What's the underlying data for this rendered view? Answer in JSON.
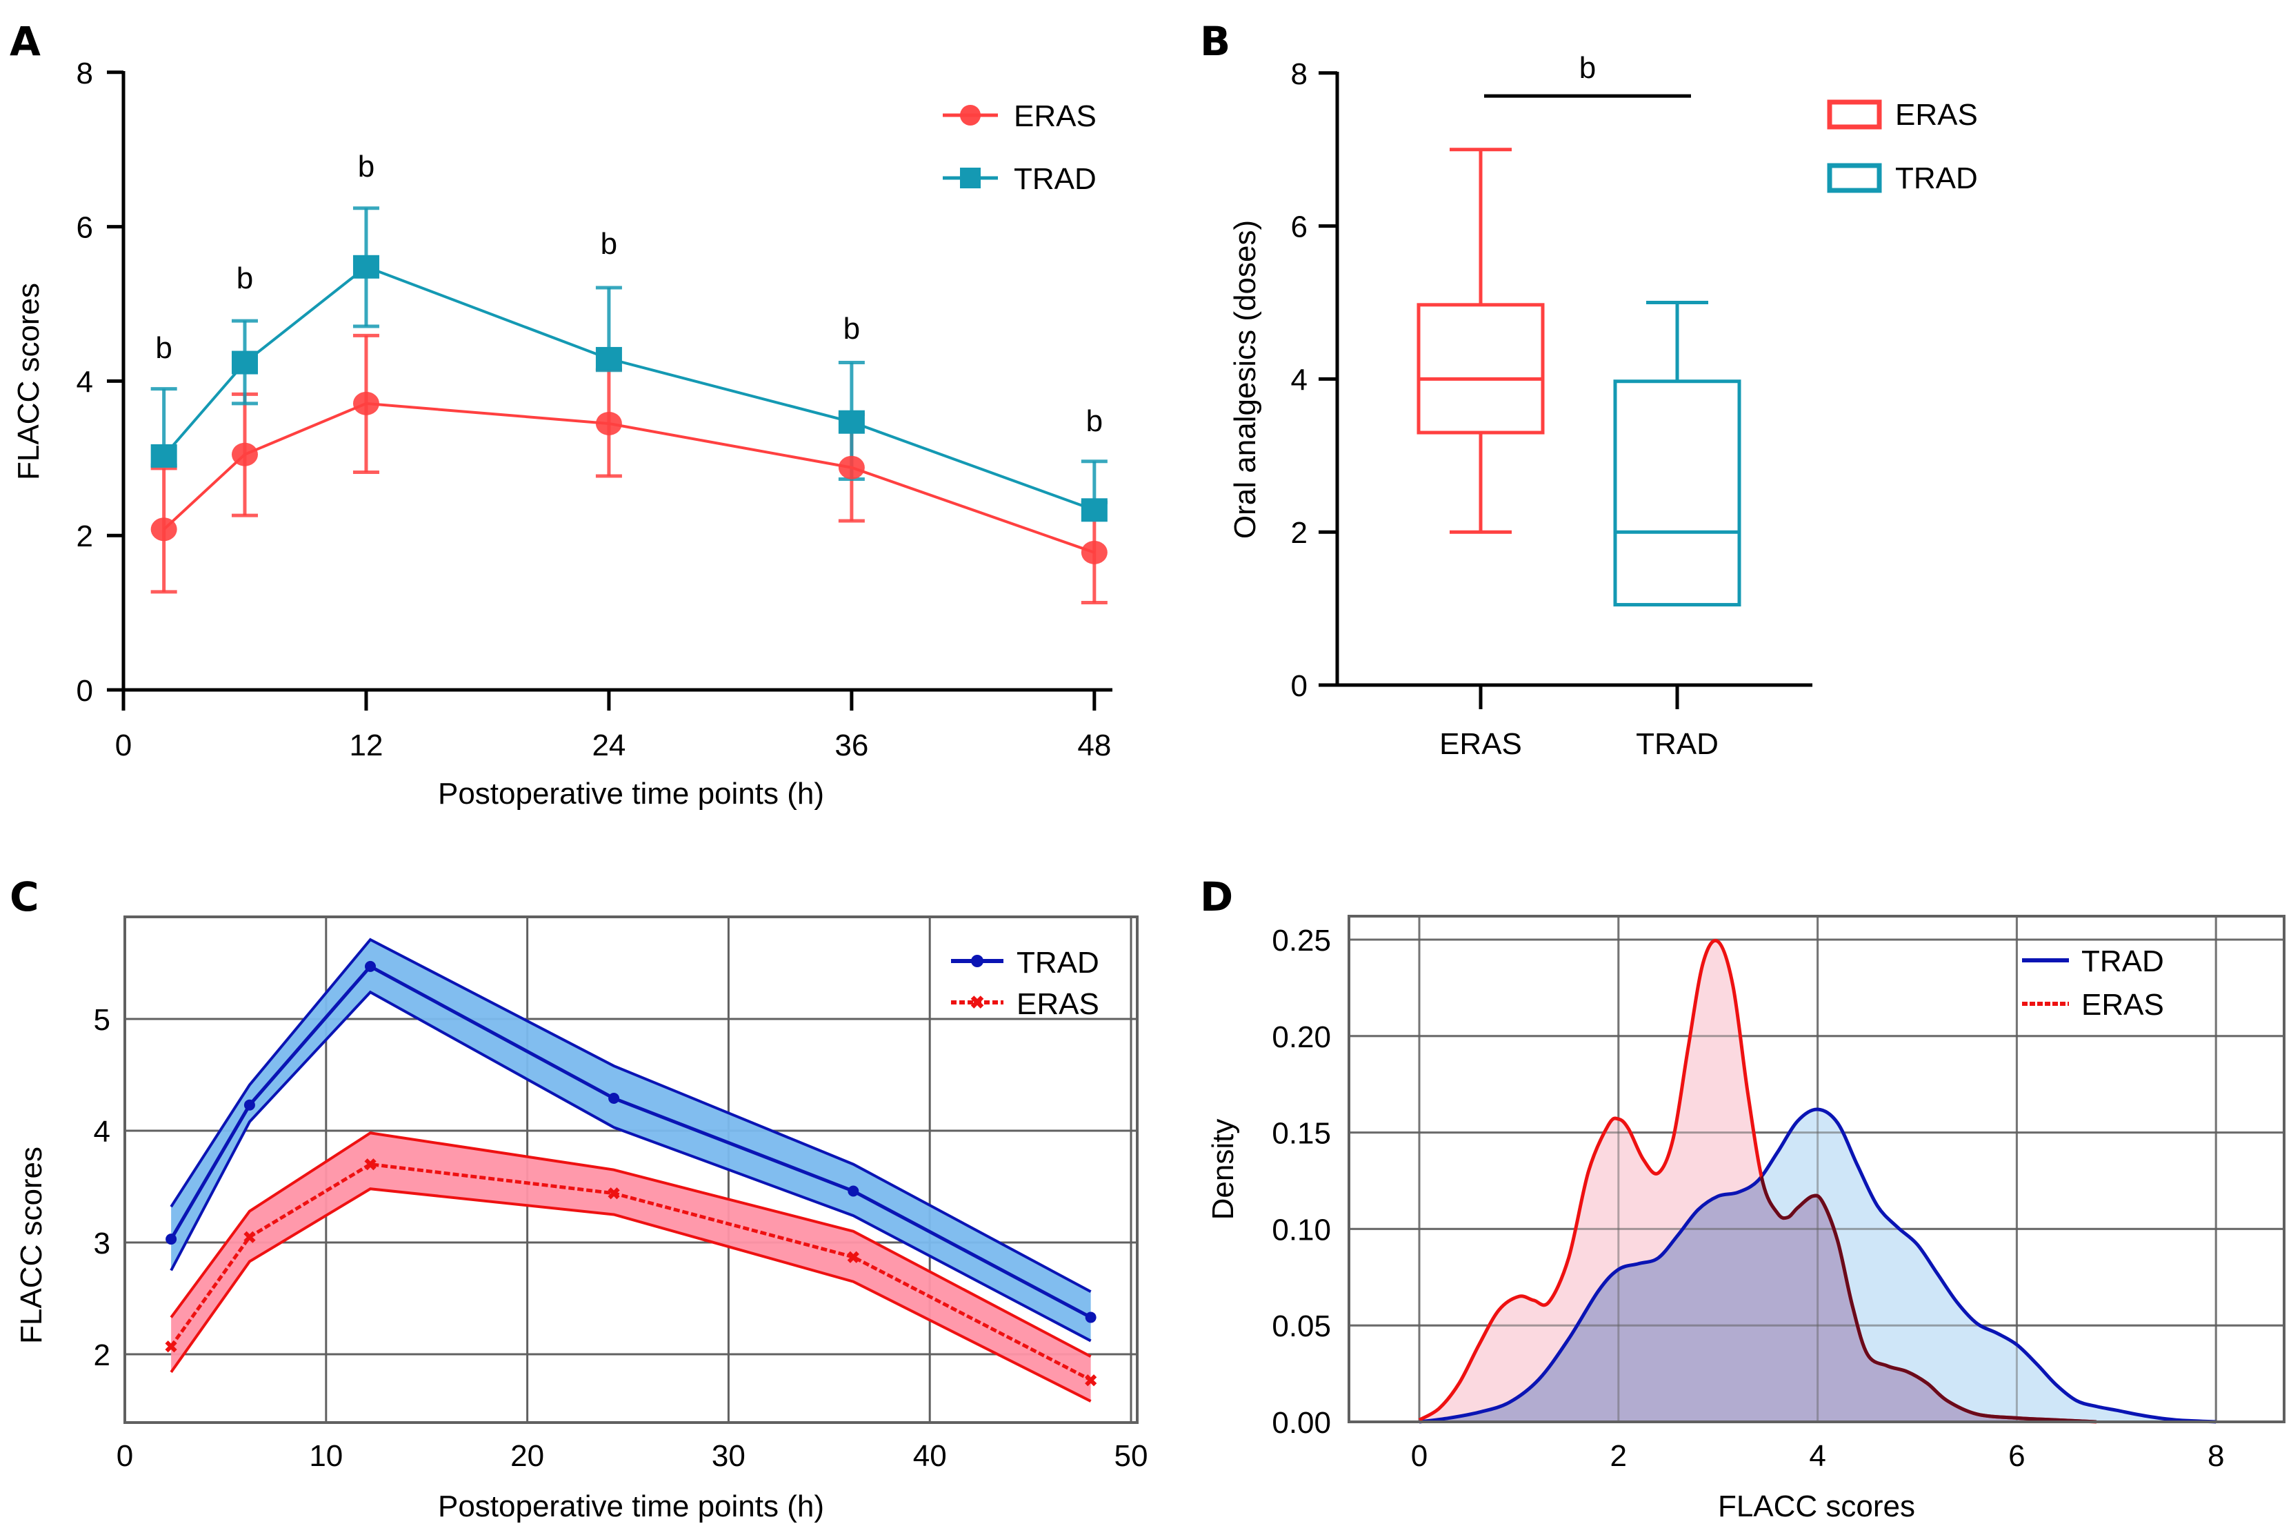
{
  "figure": {
    "panels": [
      "A",
      "B",
      "C",
      "D"
    ]
  },
  "colors": {
    "eras_a": "#ff4040",
    "trad_a": "#1499b3",
    "trad_c": "#0a14b4",
    "trad_c_fill": "#7ab9ee",
    "eras_c": "#ee1111",
    "eras_c_fill": "#ff94a6",
    "trad_d_fill": "#cfe6f8",
    "eras_d_fill": "#fbd7de",
    "overlap_d_fill": "#b2acd0",
    "grid": "#606060"
  },
  "chart_data": [
    {
      "panel": "A",
      "type": "line",
      "title": "",
      "xlabel": "Postoperative time points (h)",
      "ylabel": "FLACC scores",
      "xlim": [
        0,
        50
      ],
      "ylim": [
        0,
        8
      ],
      "xticks": [
        0,
        12,
        24,
        36,
        48
      ],
      "yticks": [
        0,
        2,
        4,
        6,
        8
      ],
      "grid": false,
      "legend_position": "top-right",
      "x": [
        2,
        6,
        12,
        24,
        36,
        48
      ],
      "series": [
        {
          "name": "ERAS",
          "marker": "circle",
          "values": [
            2.08,
            3.05,
            3.71,
            3.45,
            2.88,
            1.78
          ],
          "error_upper": [
            2.87,
            3.83,
            4.59,
            4.15,
            3.57,
            2.43
          ],
          "error_lower": [
            1.27,
            2.26,
            2.82,
            2.77,
            2.19,
            1.13
          ]
        },
        {
          "name": "TRAD",
          "marker": "square",
          "values": [
            3.03,
            4.24,
            5.48,
            4.29,
            3.47,
            2.33
          ],
          "error_upper": [
            3.9,
            4.78,
            6.24,
            5.21,
            4.24,
            2.96
          ],
          "error_lower": [
            2.91,
            3.71,
            4.71,
            4.14,
            2.73,
            2.43
          ]
        }
      ],
      "annotations": [
        {
          "x": 2,
          "text": "b",
          "y": 4.3
        },
        {
          "x": 6,
          "text": "b",
          "y": 5.2
        },
        {
          "x": 12,
          "text": "b",
          "y": 6.65
        },
        {
          "x": 24,
          "text": "b",
          "y": 5.65
        },
        {
          "x": 36,
          "text": "b",
          "y": 4.55
        },
        {
          "x": 48,
          "text": "b",
          "y": 3.35
        }
      ]
    },
    {
      "panel": "B",
      "type": "box",
      "title": "",
      "xlabel": "",
      "ylabel": "Oral analgesics (doses)",
      "ylim": [
        0,
        8
      ],
      "yticks": [
        0,
        2,
        4,
        6,
        8
      ],
      "categories": [
        "ERAS",
        "TRAD"
      ],
      "legend_position": "top-right",
      "boxes": [
        {
          "name": "ERAS",
          "min": 2,
          "q1": 3.3,
          "median": 4,
          "q3": 4.97,
          "max": 7
        },
        {
          "name": "TRAD",
          "min": 1.05,
          "q1": 1.05,
          "median": 2,
          "q3": 3.97,
          "max": 5
        }
      ],
      "significance": {
        "text": "b",
        "y": 7.7
      }
    },
    {
      "panel": "C",
      "type": "line",
      "title": "",
      "xlabel": "Postoperative time points (h)",
      "ylabel": "FLACC scores",
      "xlim": [
        0,
        50
      ],
      "ylim": [
        1.39,
        5.91
      ],
      "xticks": [
        0,
        10,
        20,
        30,
        40,
        50
      ],
      "yticks": [
        2,
        3,
        4,
        5
      ],
      "grid": true,
      "legend_position": "top-right",
      "x": [
        2.3,
        6.2,
        12.2,
        24.3,
        36.2,
        48
      ],
      "series": [
        {
          "name": "TRAD",
          "marker": "circle",
          "line": "solid",
          "values": [
            3.03,
            4.23,
            5.47,
            4.29,
            3.46,
            2.33
          ],
          "band_upper": [
            3.32,
            4.41,
            5.71,
            4.58,
            3.7,
            2.56
          ],
          "band_lower": [
            2.75,
            4.08,
            5.24,
            4.03,
            3.24,
            2.12
          ]
        },
        {
          "name": "ERAS",
          "marker": "x",
          "line": "dashed",
          "values": [
            2.07,
            3.05,
            3.7,
            3.44,
            2.87,
            1.77
          ],
          "band_upper": [
            2.33,
            3.28,
            3.98,
            3.65,
            3.1,
            1.98
          ],
          "band_lower": [
            1.84,
            2.83,
            3.48,
            3.25,
            2.65,
            1.58
          ]
        }
      ]
    },
    {
      "panel": "D",
      "type": "area",
      "title": "",
      "xlabel": "FLACC scores",
      "ylabel": "Density",
      "xlim": [
        -0.7,
        8.7
      ],
      "ylim": [
        0,
        0.262
      ],
      "xticks": [
        0,
        2,
        4,
        6,
        8
      ],
      "yticks": [
        "0.00",
        "0.05",
        "0.10",
        "0.15",
        "0.20",
        "0.25"
      ],
      "grid": true,
      "legend_position": "top-right",
      "series": [
        {
          "name": "TRAD",
          "line": "solid",
          "x": [
            0,
            0.3,
            0.6,
            0.9,
            1.2,
            1.5,
            1.8,
            2.0,
            2.2,
            2.4,
            2.6,
            2.8,
            3.0,
            3.2,
            3.4,
            3.6,
            3.8,
            4.0,
            4.2,
            4.4,
            4.6,
            4.8,
            5.0,
            5.2,
            5.4,
            5.6,
            5.8,
            6.0,
            6.2,
            6.4,
            6.6,
            6.8,
            7.0,
            7.3,
            7.6,
            8.0
          ],
          "y": [
            0.0,
            0.002,
            0.005,
            0.01,
            0.022,
            0.043,
            0.068,
            0.079,
            0.082,
            0.085,
            0.097,
            0.11,
            0.117,
            0.119,
            0.125,
            0.14,
            0.156,
            0.162,
            0.155,
            0.133,
            0.112,
            0.101,
            0.092,
            0.077,
            0.062,
            0.051,
            0.046,
            0.04,
            0.03,
            0.019,
            0.011,
            0.008,
            0.006,
            0.003,
            0.001,
            0.0
          ]
        },
        {
          "name": "ERAS",
          "line": "dashed",
          "x": [
            0,
            0.2,
            0.4,
            0.6,
            0.8,
            1.0,
            1.15,
            1.3,
            1.5,
            1.7,
            1.9,
            2.0,
            2.1,
            2.25,
            2.4,
            2.55,
            2.7,
            2.85,
            3.0,
            3.15,
            3.3,
            3.45,
            3.6,
            3.7,
            3.8,
            3.95,
            4.05,
            4.2,
            4.35,
            4.5,
            4.7,
            4.9,
            5.1,
            5.3,
            5.6,
            6.0,
            6.4,
            6.8
          ],
          "y": [
            0.001,
            0.007,
            0.02,
            0.04,
            0.058,
            0.065,
            0.063,
            0.062,
            0.085,
            0.13,
            0.154,
            0.157,
            0.152,
            0.136,
            0.129,
            0.147,
            0.194,
            0.238,
            0.249,
            0.226,
            0.17,
            0.124,
            0.108,
            0.106,
            0.111,
            0.117,
            0.114,
            0.094,
            0.06,
            0.035,
            0.029,
            0.026,
            0.02,
            0.011,
            0.004,
            0.002,
            0.001,
            0.0
          ]
        }
      ]
    }
  ]
}
